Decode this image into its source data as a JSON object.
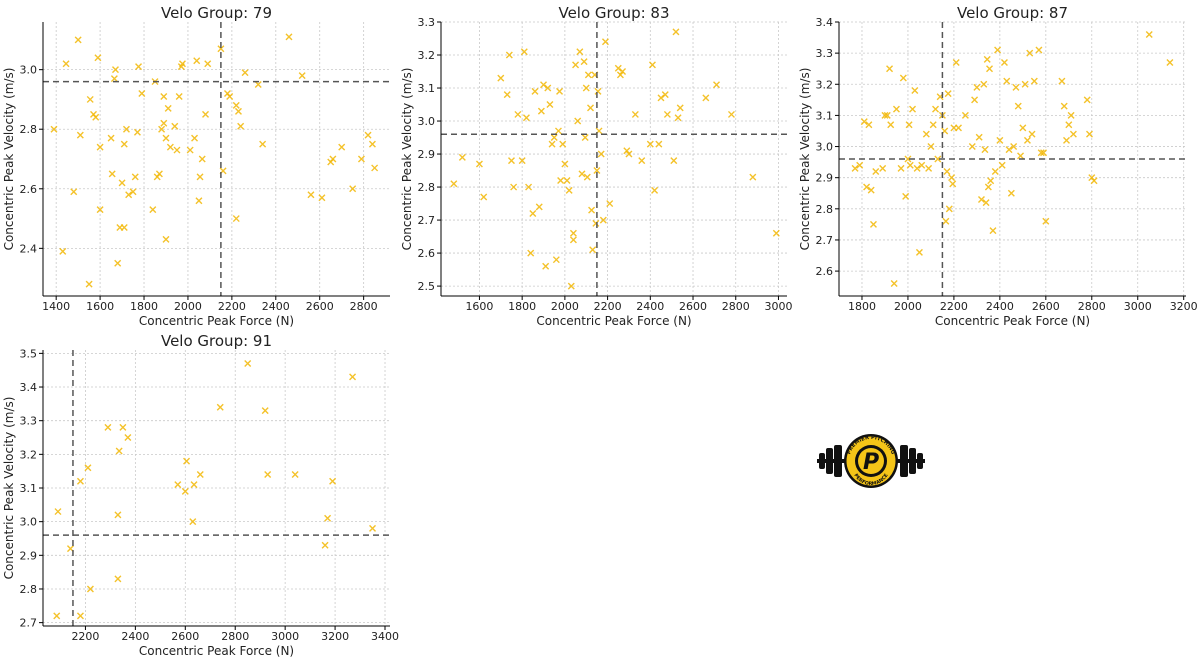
{
  "colors": {
    "marker": "#f2b705",
    "ref_line": "#555555",
    "grid": "#c9c9c9",
    "axis": "#000000"
  },
  "chart_data": [
    {
      "type": "scatter",
      "title": "Velo Group: 79",
      "xlabel": "Concentric Peak Force (N)",
      "ylabel": "Concentric Peak Velocity (m/s)",
      "xlim": [
        1340,
        2920
      ],
      "ylim": [
        2.24,
        3.16
      ],
      "xticks": [
        1400,
        1600,
        1800,
        2000,
        2200,
        2400,
        2600,
        2800
      ],
      "yticks": [
        2.4,
        2.6,
        2.8,
        3.0
      ],
      "grid": true,
      "marker": "x",
      "ref_lines": {
        "x": 2150,
        "y": 2.96
      },
      "points": [
        [
          1390,
          2.8
        ],
        [
          1430,
          2.39
        ],
        [
          1445,
          3.02
        ],
        [
          1480,
          2.59
        ],
        [
          1500,
          3.1
        ],
        [
          1510,
          2.78
        ],
        [
          1550,
          2.28
        ],
        [
          1555,
          2.9
        ],
        [
          1570,
          2.85
        ],
        [
          1580,
          2.84
        ],
        [
          1590,
          3.04
        ],
        [
          1600,
          2.74
        ],
        [
          1600,
          2.53
        ],
        [
          1650,
          2.77
        ],
        [
          1655,
          2.65
        ],
        [
          1665,
          2.97
        ],
        [
          1670,
          3.0
        ],
        [
          1680,
          2.35
        ],
        [
          1690,
          2.47
        ],
        [
          1700,
          2.62
        ],
        [
          1710,
          2.47
        ],
        [
          1710,
          2.75
        ],
        [
          1720,
          2.8
        ],
        [
          1730,
          2.58
        ],
        [
          1750,
          2.59
        ],
        [
          1760,
          2.64
        ],
        [
          1770,
          2.79
        ],
        [
          1775,
          3.01
        ],
        [
          1790,
          2.92
        ],
        [
          1840,
          2.53
        ],
        [
          1850,
          2.96
        ],
        [
          1860,
          2.64
        ],
        [
          1870,
          2.65
        ],
        [
          1880,
          2.8
        ],
        [
          1890,
          2.91
        ],
        [
          1890,
          2.82
        ],
        [
          1900,
          2.43
        ],
        [
          1900,
          2.77
        ],
        [
          1910,
          2.87
        ],
        [
          1920,
          2.74
        ],
        [
          1940,
          2.81
        ],
        [
          1950,
          2.73
        ],
        [
          1960,
          2.91
        ],
        [
          1970,
          3.01
        ],
        [
          1975,
          3.02
        ],
        [
          2010,
          2.73
        ],
        [
          2030,
          2.77
        ],
        [
          2040,
          3.03
        ],
        [
          2050,
          2.56
        ],
        [
          2055,
          2.64
        ],
        [
          2065,
          2.7
        ],
        [
          2080,
          2.85
        ],
        [
          2090,
          3.02
        ],
        [
          2150,
          3.07
        ],
        [
          2160,
          2.66
        ],
        [
          2180,
          2.92
        ],
        [
          2190,
          2.91
        ],
        [
          2220,
          2.5
        ],
        [
          2220,
          2.88
        ],
        [
          2230,
          2.86
        ],
        [
          2240,
          2.81
        ],
        [
          2260,
          2.99
        ],
        [
          2320,
          2.95
        ],
        [
          2340,
          2.75
        ],
        [
          2460,
          3.11
        ],
        [
          2520,
          2.98
        ],
        [
          2560,
          2.58
        ],
        [
          2610,
          2.57
        ],
        [
          2650,
          2.69
        ],
        [
          2660,
          2.7
        ],
        [
          2700,
          2.74
        ],
        [
          2750,
          2.6
        ],
        [
          2790,
          2.7
        ],
        [
          2820,
          2.78
        ],
        [
          2850,
          2.67
        ],
        [
          2840,
          2.75
        ]
      ]
    },
    {
      "type": "scatter",
      "title": "Velo Group: 83",
      "xlabel": "Concentric Peak Force (N)",
      "ylabel": "Concentric Peak Velocity (m/s)",
      "xlim": [
        1420,
        3040
      ],
      "ylim": [
        2.47,
        3.3
      ],
      "xticks": [
        1600,
        1800,
        2000,
        2200,
        2400,
        2600,
        2800,
        3000
      ],
      "yticks": [
        2.5,
        2.6,
        2.7,
        2.8,
        2.9,
        3.0,
        3.1,
        3.2,
        3.3
      ],
      "grid": true,
      "marker": "x",
      "ref_lines": {
        "x": 2150,
        "y": 2.96
      },
      "points": [
        [
          1480,
          2.81
        ],
        [
          1520,
          2.89
        ],
        [
          1600,
          2.87
        ],
        [
          1620,
          2.77
        ],
        [
          1700,
          3.13
        ],
        [
          1730,
          3.08
        ],
        [
          1740,
          3.2
        ],
        [
          1750,
          2.88
        ],
        [
          1760,
          2.8
        ],
        [
          1780,
          3.02
        ],
        [
          1800,
          2.88
        ],
        [
          1810,
          3.21
        ],
        [
          1820,
          3.01
        ],
        [
          1830,
          2.8
        ],
        [
          1840,
          2.6
        ],
        [
          1850,
          2.72
        ],
        [
          1860,
          3.09
        ],
        [
          1880,
          2.74
        ],
        [
          1890,
          3.03
        ],
        [
          1900,
          3.11
        ],
        [
          1910,
          2.56
        ],
        [
          1920,
          3.1
        ],
        [
          1930,
          3.05
        ],
        [
          1940,
          2.93
        ],
        [
          1950,
          2.95
        ],
        [
          1960,
          2.58
        ],
        [
          1970,
          2.97
        ],
        [
          1975,
          3.09
        ],
        [
          1980,
          2.82
        ],
        [
          1990,
          2.93
        ],
        [
          2000,
          2.87
        ],
        [
          2010,
          2.82
        ],
        [
          2020,
          2.79
        ],
        [
          2030,
          2.5
        ],
        [
          2040,
          2.66
        ],
        [
          2040,
          2.64
        ],
        [
          2050,
          3.17
        ],
        [
          2060,
          3.0
        ],
        [
          2070,
          3.21
        ],
        [
          2080,
          2.84
        ],
        [
          2090,
          3.18
        ],
        [
          2095,
          2.95
        ],
        [
          2100,
          3.1
        ],
        [
          2105,
          2.83
        ],
        [
          2110,
          3.14
        ],
        [
          2120,
          3.04
        ],
        [
          2125,
          2.73
        ],
        [
          2130,
          2.61
        ],
        [
          2140,
          3.14
        ],
        [
          2145,
          2.69
        ],
        [
          2150,
          2.85
        ],
        [
          2155,
          3.09
        ],
        [
          2160,
          2.97
        ],
        [
          2170,
          2.9
        ],
        [
          2180,
          2.7
        ],
        [
          2190,
          3.24
        ],
        [
          2210,
          2.75
        ],
        [
          2250,
          3.16
        ],
        [
          2260,
          3.14
        ],
        [
          2270,
          3.15
        ],
        [
          2290,
          2.91
        ],
        [
          2300,
          2.9
        ],
        [
          2330,
          3.02
        ],
        [
          2360,
          2.88
        ],
        [
          2400,
          2.93
        ],
        [
          2410,
          3.17
        ],
        [
          2420,
          2.79
        ],
        [
          2440,
          2.93
        ],
        [
          2450,
          3.07
        ],
        [
          2470,
          3.08
        ],
        [
          2480,
          3.02
        ],
        [
          2510,
          2.88
        ],
        [
          2520,
          3.27
        ],
        [
          2530,
          3.01
        ],
        [
          2540,
          3.04
        ],
        [
          2660,
          3.07
        ],
        [
          2710,
          3.11
        ],
        [
          2780,
          3.02
        ],
        [
          2880,
          2.83
        ],
        [
          2990,
          2.66
        ]
      ]
    },
    {
      "type": "scatter",
      "title": "Velo Group: 87",
      "xlabel": "Concentric Peak Force (N)",
      "ylabel": "Concentric Peak Velocity (m/s)",
      "xlim": [
        1700,
        3210
      ],
      "ylim": [
        2.52,
        3.4
      ],
      "xticks": [
        1800,
        2000,
        2200,
        2400,
        2600,
        2800,
        3000,
        3200
      ],
      "yticks": [
        2.6,
        2.7,
        2.8,
        2.9,
        3.0,
        3.1,
        3.2,
        3.3,
        3.4
      ],
      "grid": true,
      "marker": "x",
      "ref_lines": {
        "x": 2150,
        "y": 2.96
      },
      "points": [
        [
          1770,
          2.93
        ],
        [
          1790,
          2.94
        ],
        [
          1810,
          3.08
        ],
        [
          1820,
          2.87
        ],
        [
          1830,
          3.07
        ],
        [
          1840,
          2.86
        ],
        [
          1850,
          2.75
        ],
        [
          1860,
          2.92
        ],
        [
          1890,
          2.93
        ],
        [
          1900,
          3.1
        ],
        [
          1910,
          3.1
        ],
        [
          1920,
          3.25
        ],
        [
          1925,
          3.07
        ],
        [
          1940,
          2.56
        ],
        [
          1950,
          3.12
        ],
        [
          1970,
          2.93
        ],
        [
          1980,
          3.22
        ],
        [
          1990,
          2.84
        ],
        [
          2000,
          2.96
        ],
        [
          2005,
          3.07
        ],
        [
          2010,
          2.94
        ],
        [
          2020,
          3.12
        ],
        [
          2030,
          3.18
        ],
        [
          2040,
          2.93
        ],
        [
          2050,
          2.66
        ],
        [
          2060,
          2.94
        ],
        [
          2080,
          3.04
        ],
        [
          2090,
          2.93
        ],
        [
          2100,
          3.0
        ],
        [
          2110,
          3.07
        ],
        [
          2120,
          3.12
        ],
        [
          2130,
          2.96
        ],
        [
          2140,
          3.16
        ],
        [
          2150,
          3.1
        ],
        [
          2160,
          3.05
        ],
        [
          2165,
          2.76
        ],
        [
          2170,
          2.92
        ],
        [
          2175,
          3.17
        ],
        [
          2180,
          2.8
        ],
        [
          2190,
          2.9
        ],
        [
          2195,
          2.88
        ],
        [
          2200,
          3.06
        ],
        [
          2210,
          3.27
        ],
        [
          2220,
          3.06
        ],
        [
          2250,
          3.1
        ],
        [
          2280,
          3.0
        ],
        [
          2290,
          3.15
        ],
        [
          2300,
          3.19
        ],
        [
          2310,
          3.03
        ],
        [
          2320,
          2.83
        ],
        [
          2330,
          3.2
        ],
        [
          2335,
          2.99
        ],
        [
          2340,
          2.82
        ],
        [
          2345,
          3.28
        ],
        [
          2350,
          2.87
        ],
        [
          2355,
          3.25
        ],
        [
          2360,
          2.89
        ],
        [
          2370,
          2.73
        ],
        [
          2380,
          2.92
        ],
        [
          2390,
          3.31
        ],
        [
          2400,
          3.02
        ],
        [
          2410,
          2.94
        ],
        [
          2420,
          3.27
        ],
        [
          2430,
          3.21
        ],
        [
          2440,
          2.99
        ],
        [
          2450,
          2.85
        ],
        [
          2460,
          3.0
        ],
        [
          2470,
          3.19
        ],
        [
          2480,
          3.13
        ],
        [
          2490,
          2.97
        ],
        [
          2500,
          3.06
        ],
        [
          2510,
          3.2
        ],
        [
          2520,
          3.02
        ],
        [
          2530,
          3.3
        ],
        [
          2540,
          3.04
        ],
        [
          2550,
          3.21
        ],
        [
          2570,
          3.31
        ],
        [
          2580,
          2.98
        ],
        [
          2590,
          2.98
        ],
        [
          2600,
          2.76
        ],
        [
          2670,
          3.21
        ],
        [
          2680,
          3.13
        ],
        [
          2690,
          3.02
        ],
        [
          2700,
          3.07
        ],
        [
          2710,
          3.1
        ],
        [
          2720,
          3.04
        ],
        [
          2780,
          3.15
        ],
        [
          2790,
          3.04
        ],
        [
          2800,
          2.9
        ],
        [
          2810,
          2.89
        ],
        [
          3050,
          3.36
        ],
        [
          3140,
          3.27
        ]
      ]
    },
    {
      "type": "scatter",
      "title": "Velo Group: 91",
      "xlabel": "Concentric Peak Force (N)",
      "ylabel": "Concentric Peak Velocity (m/s)",
      "xlim": [
        2030,
        3420
      ],
      "ylim": [
        2.69,
        3.51
      ],
      "xticks": [
        2200,
        2400,
        2600,
        2800,
        3000,
        3200,
        3400
      ],
      "yticks": [
        2.7,
        2.8,
        2.9,
        3.0,
        3.1,
        3.2,
        3.3,
        3.4,
        3.5
      ],
      "grid": true,
      "marker": "x",
      "ref_lines": {
        "x": 2150,
        "y": 2.96
      },
      "points": [
        [
          2085,
          2.72
        ],
        [
          2090,
          3.03
        ],
        [
          2140,
          2.92
        ],
        [
          2180,
          2.72
        ],
        [
          2180,
          3.12
        ],
        [
          2210,
          3.16
        ],
        [
          2220,
          2.8
        ],
        [
          2290,
          3.28
        ],
        [
          2330,
          3.02
        ],
        [
          2330,
          2.83
        ],
        [
          2335,
          3.21
        ],
        [
          2350,
          3.28
        ],
        [
          2370,
          3.25
        ],
        [
          2570,
          3.11
        ],
        [
          2600,
          3.09
        ],
        [
          2605,
          3.18
        ],
        [
          2630,
          3.0
        ],
        [
          2635,
          3.11
        ],
        [
          2660,
          3.14
        ],
        [
          2740,
          3.34
        ],
        [
          2850,
          3.47
        ],
        [
          2920,
          3.33
        ],
        [
          2930,
          3.14
        ],
        [
          3040,
          3.14
        ],
        [
          3160,
          2.93
        ],
        [
          3170,
          3.01
        ],
        [
          3190,
          3.12
        ],
        [
          3270,
          3.43
        ],
        [
          3350,
          2.98
        ]
      ]
    }
  ],
  "logo": {
    "text_top": "PREMIER PITCHING",
    "text_bottom": "PERFORMANCE",
    "letter": "P"
  }
}
